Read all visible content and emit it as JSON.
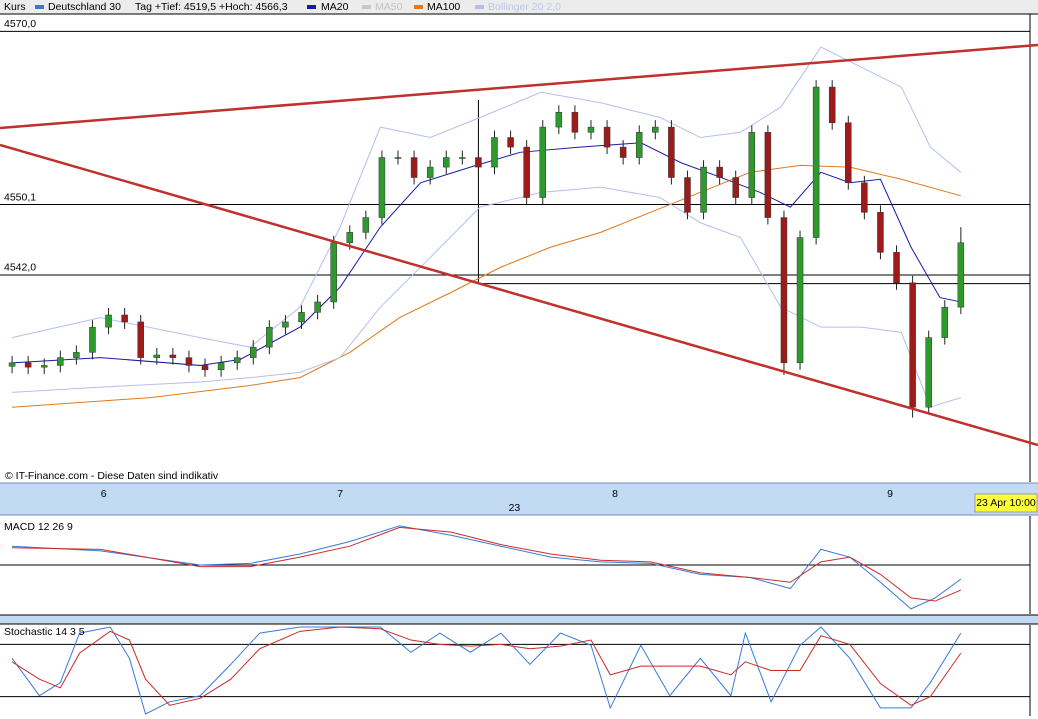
{
  "chart_data": [
    {
      "type": "candlestick",
      "title": "Kurs",
      "day_range": "Tag +Tief: 4519,5 +Hoch: 4566,3",
      "footer": "© IT-Finance.com - Diese Daten sind indikativ",
      "ylim": [
        4518.2,
        4572.0
      ],
      "yticks": [
        {
          "value": 4570,
          "label": "4570,0"
        },
        {
          "value": 4550.1,
          "label": "4550,1"
        },
        {
          "value": 4542,
          "label": "4542,0"
        }
      ],
      "xlim": [
        -0.75,
        63.3
      ],
      "xticks": [
        {
          "value": 5.7,
          "label": "6"
        },
        {
          "value": 20.4,
          "label": "7"
        },
        {
          "value": 37.5,
          "label": "8"
        },
        {
          "value": 54.6,
          "label": "9"
        }
      ],
      "crosshair": {
        "x": 29.0,
        "y": 4541.0,
        "label": "23",
        "time_label": "23 Apr 10:00"
      },
      "series": [
        {
          "name": "Deutschland 30",
          "color": "#3a78c0",
          "up_color": "#2e9a2e",
          "down_color": "#9c1c1c",
          "open": [
            4531.5,
            4531.9,
            4531.4,
            4531.6,
            4532.5,
            4533.1,
            4536.0,
            4537.4,
            4536.6,
            4532.5,
            4532.8,
            4532.5,
            4531.6,
            4531.1,
            4531.9,
            4532.5,
            4533.7,
            4536.0,
            4536.6,
            4537.7,
            4538.9,
            4545.7,
            4546.9,
            4548.6,
            4555.5,
            4555.5,
            4553.2,
            4554.4,
            4555.5,
            4555.5,
            4554.4,
            4557.8,
            4556.7,
            4550.9,
            4559.0,
            4560.7,
            4558.4,
            4559.0,
            4556.7,
            4555.5,
            4558.4,
            4559.0,
            4553.2,
            4549.2,
            4554.4,
            4553.2,
            4550.9,
            4558.4,
            4548.6,
            4531.9,
            4546.3,
            4563.6,
            4559.5,
            4552.6,
            4549.2,
            4544.6,
            4541.1,
            4526.8,
            4534.8,
            4538.3
          ],
          "high": [
            4532.7,
            4532.7,
            4532.4,
            4533.3,
            4533.9,
            4536.8,
            4538.2,
            4538.2,
            4537.4,
            4533.6,
            4533.6,
            4533.3,
            4532.4,
            4532.7,
            4533.3,
            4534.5,
            4536.8,
            4537.4,
            4538.5,
            4539.7,
            4546.5,
            4547.7,
            4549.4,
            4556.3,
            4556.3,
            4556.3,
            4555.2,
            4556.3,
            4556.3,
            4556.3,
            4558.6,
            4558.6,
            4557.5,
            4559.8,
            4561.5,
            4561.5,
            4559.8,
            4559.8,
            4557.5,
            4559.2,
            4559.8,
            4559.8,
            4554.0,
            4555.2,
            4555.2,
            4554.0,
            4559.2,
            4559.2,
            4549.4,
            4547.1,
            4564.4,
            4564.4,
            4560.3,
            4553.4,
            4550.0,
            4545.4,
            4541.9,
            4535.6,
            4539.1,
            4547.5
          ],
          "low": [
            4530.7,
            4530.6,
            4530.6,
            4530.8,
            4531.7,
            4532.3,
            4535.2,
            4535.8,
            4531.7,
            4531.7,
            4531.7,
            4530.8,
            4530.3,
            4530.3,
            4531.1,
            4531.7,
            4532.9,
            4535.2,
            4535.8,
            4536.9,
            4538.1,
            4544.9,
            4546.1,
            4547.8,
            4554.7,
            4552.4,
            4552.4,
            4553.6,
            4554.7,
            4553.6,
            4553.6,
            4555.9,
            4550.1,
            4550.1,
            4558.2,
            4557.6,
            4557.6,
            4555.9,
            4554.7,
            4554.7,
            4557.6,
            4552.4,
            4548.4,
            4548.4,
            4552.4,
            4550.1,
            4550.1,
            4547.8,
            4530.5,
            4531.1,
            4545.5,
            4558.7,
            4551.8,
            4548.4,
            4543.8,
            4540.3,
            4525.6,
            4526.0,
            4534.0,
            4537.5
          ],
          "close": [
            4531.9,
            4531.4,
            4531.6,
            4532.5,
            4533.1,
            4536.0,
            4537.4,
            4536.6,
            4532.5,
            4532.8,
            4532.5,
            4531.6,
            4531.1,
            4531.9,
            4532.5,
            4533.7,
            4536.0,
            4536.6,
            4537.7,
            4538.9,
            4545.7,
            4546.9,
            4548.6,
            4555.5,
            4555.5,
            4553.2,
            4554.4,
            4555.5,
            4555.5,
            4554.4,
            4557.8,
            4556.7,
            4550.9,
            4559.0,
            4560.7,
            4558.4,
            4559.0,
            4556.7,
            4555.5,
            4558.4,
            4559.0,
            4553.2,
            4549.2,
            4554.4,
            4553.2,
            4550.9,
            4558.4,
            4548.6,
            4531.9,
            4546.3,
            4563.6,
            4559.5,
            4552.6,
            4549.2,
            4544.6,
            4541.1,
            4526.8,
            4534.8,
            4538.3,
            4545.7
          ]
        },
        {
          "name": "MA20",
          "color": "#1a1aa8",
          "x": [
            0,
            5.5,
            11.7,
            14.2,
            17.9,
            20.4,
            22.9,
            25.4,
            28.5,
            31.6,
            35.3,
            39.1,
            41.6,
            44.1,
            46.5,
            48.4,
            50.3,
            52.1,
            54.0,
            55.9,
            57.7,
            59
          ],
          "values": [
            4531.9,
            4532.5,
            4531.6,
            4532.3,
            4536.0,
            4540.6,
            4547.5,
            4552.6,
            4554.4,
            4556.1,
            4556.7,
            4557.2,
            4554.9,
            4553.2,
            4551.5,
            4549.8,
            4553.8,
            4552.6,
            4553.0,
            4545.2,
            4539.4,
            4538.9
          ]
        },
        {
          "name": "MA50",
          "color": "#c8c8c8"
        },
        {
          "name": "MA100",
          "color": "#e0781c",
          "x": [
            0,
            8.6,
            14.8,
            17.9,
            21.0,
            24.1,
            27.3,
            30.4,
            33.5,
            36.6,
            39.7,
            42.8,
            45.9,
            49.0,
            52.1,
            55.3,
            59
          ],
          "values": [
            4526.8,
            4527.9,
            4529.3,
            4530.2,
            4533.1,
            4537.1,
            4540.0,
            4542.9,
            4545.2,
            4546.9,
            4549.2,
            4551.5,
            4553.8,
            4554.6,
            4554.4,
            4553.0,
            4551.1
          ]
        },
        {
          "name": "Bollinger 20 2,0",
          "color": "#b4bfec",
          "x": [
            0,
            5.5,
            11.7,
            14.8,
            17.9,
            20.4,
            22.9,
            26.0,
            29.1,
            32.9,
            36.6,
            40.3,
            42.8,
            45.3,
            47.8,
            50.3,
            52.8,
            55.3,
            57.1,
            59
          ],
          "upper": [
            4534.8,
            4537.1,
            4534.8,
            4533.7,
            4538.3,
            4547.5,
            4559.0,
            4557.8,
            4560.1,
            4563.0,
            4561.8,
            4560.1,
            4557.8,
            4558.4,
            4561.3,
            4568.2,
            4565.9,
            4563.6,
            4556.7,
            4553.8
          ],
          "lower": [
            4528.5,
            4529.1,
            4529.7,
            4530.2,
            4530.8,
            4532.5,
            4538.3,
            4544.0,
            4549.8,
            4551.5,
            4552.1,
            4550.9,
            4548.0,
            4546.3,
            4538.3,
            4536.0,
            4536.0,
            4535.4,
            4526.8,
            4527.9
          ]
        }
      ]
    },
    {
      "type": "line",
      "title": "MACD 12 26 9",
      "ylim": [
        -3,
        3
      ],
      "levels": [
        0
      ],
      "x": [
        0,
        5.5,
        11.7,
        14.8,
        17.9,
        21.0,
        24.1,
        27.3,
        30.4,
        33.5,
        36.6,
        39.7,
        42.8,
        45.9,
        48.4,
        50.3,
        52.1,
        54.0,
        55.9,
        57.4,
        59
      ],
      "series": [
        {
          "color": "#3a7ad8",
          "values": [
            1.2,
            0.9,
            0,
            0.1,
            0.7,
            1.5,
            2.5,
            1.9,
            1.2,
            0.5,
            0.2,
            0.1,
            -0.6,
            -0.8,
            -1.5,
            1.0,
            0.5,
            -1.1,
            -2.8,
            -2.1,
            -0.9
          ]
        },
        {
          "color": "#cc2a2a",
          "values": [
            1.1,
            1.0,
            -0.1,
            -0.1,
            0.5,
            1.2,
            2.4,
            2.1,
            1.3,
            0.7,
            0.3,
            0.2,
            -0.5,
            -0.8,
            -1.1,
            0.2,
            0.5,
            -0.6,
            -2.1,
            -2.3,
            -1.6
          ]
        }
      ]
    },
    {
      "type": "line",
      "title": "Stochastic 14 3 5",
      "ylim": [
        0,
        100
      ],
      "levels": [
        20,
        80
      ],
      "x": [
        0,
        1.7,
        3.0,
        4.2,
        6.1,
        7.3,
        8.3,
        9.8,
        11.7,
        13.6,
        15.4,
        17.9,
        20.4,
        22.9,
        24.8,
        26.6,
        28.5,
        30.4,
        32.2,
        34.1,
        36.0,
        37.2,
        39.1,
        40.9,
        42.8,
        44.7,
        45.6,
        47.2,
        49.0,
        50.3,
        52.1,
        54.0,
        55.9,
        57.1,
        59
      ],
      "series": [
        {
          "color": "#3a7ad8",
          "values": [
            64,
            21,
            36,
            93,
            100,
            64,
            0,
            14,
            21,
            57,
            93,
            100,
            100,
            100,
            71,
            93,
            71,
            93,
            57,
            93,
            79,
            7,
            79,
            21,
            64,
            21,
            93,
            14,
            79,
            100,
            64,
            7,
            7,
            36,
            93
          ]
        },
        {
          "color": "#cc2a2a",
          "values": [
            60,
            40,
            30,
            70,
            95,
            85,
            40,
            10,
            18,
            40,
            75,
            95,
            100,
            98,
            85,
            80,
            78,
            80,
            75,
            78,
            85,
            45,
            55,
            55,
            55,
            45,
            60,
            50,
            50,
            90,
            80,
            35,
            10,
            20,
            70
          ]
        }
      ]
    }
  ]
}
